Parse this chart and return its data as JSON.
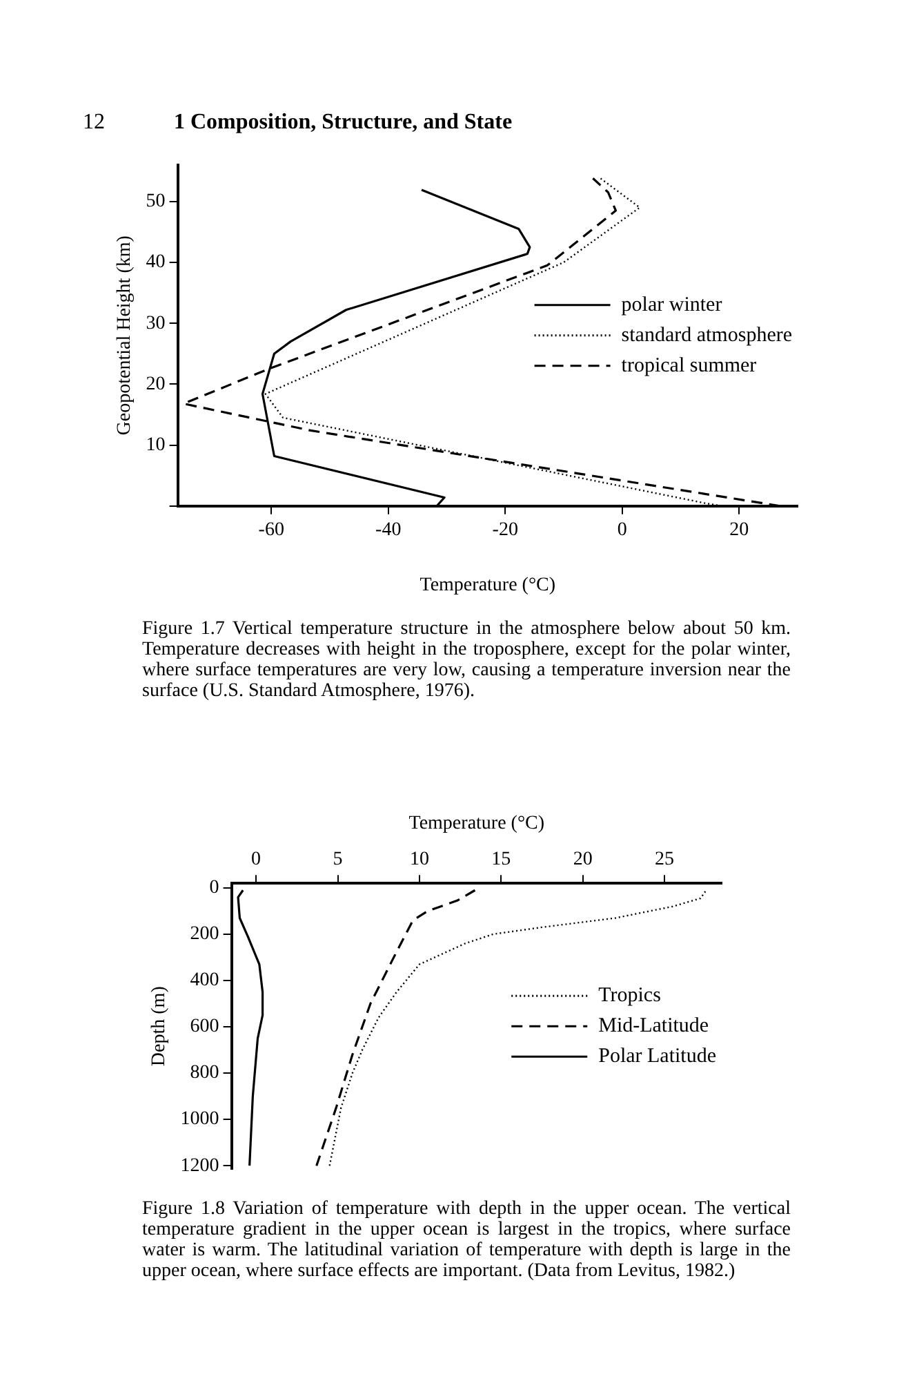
{
  "chart_data": [
    {
      "type": "line",
      "annotations": [
        "12",
        "1 Composition, Structure, and State",
        "Figure 1.7 Vertical temperature structure in the atmosphere below about 50 km. Temperature decreases with height in the troposphere, except for the polar winter, where surface temperatures are very low, causing a temperature inversion near the surface (U.S. Standard Atmosphere, 1976)."
      ],
      "xlabel": "Temperature (°C)",
      "ylabel": "Geopotential Height (km)",
      "xlim": [
        -76,
        30
      ],
      "ylim": [
        0,
        56
      ],
      "xticks": [
        -60,
        -40,
        -20,
        0,
        20
      ],
      "yticks": [
        {
          "value": 0,
          "label": null
        },
        10,
        20,
        30,
        40,
        50
      ],
      "grid": false,
      "legend": "right",
      "series": [
        {
          "name": "polar winter",
          "color": "#000000",
          "line_style": "solid",
          "x": [
            -31.7,
            -30.4,
            -59.5,
            -61.5,
            -59.5,
            -56.7,
            -47.2,
            -16.2,
            -15.8,
            -17.7,
            -34.3
          ],
          "values": [
            0,
            1.4,
            8.2,
            18.4,
            25,
            27,
            32.2,
            41.4,
            42.5,
            45.5,
            51.9
          ]
        },
        {
          "name": "standard atmosphere",
          "color": "#000000",
          "line_style": "dotted",
          "x": [
            17,
            14,
            -58,
            -61,
            -10,
            3,
            -4
          ],
          "values": [
            0,
            0.5,
            14.5,
            18.4,
            40,
            49,
            54
          ]
        },
        {
          "name": "tropical summer",
          "color": "#000000",
          "line_style": "dashed",
          "x": [
            27,
            -53.3,
            -75,
            -60.2,
            -12.8,
            -1.1,
            -2.4,
            -5
          ],
          "values": [
            0,
            12.4,
            16.8,
            22.6,
            39.5,
            48.5,
            51.5,
            53.8
          ]
        }
      ]
    },
    {
      "type": "line",
      "annotations": [
        "Figure 1.8 Variation of temperature with depth in the upper ocean. The vertical temperature gradient in the upper ocean is largest in the tropics, where surface water is warm. The latitudinal variation of temperature with depth is large in the upper ocean, where surface effects are important. (Data from Levitus, 1982.)"
      ],
      "xlabel": "Temperature (°C)",
      "ylabel": "Depth (m)",
      "xlim": [
        -1.5,
        28.5
      ],
      "ylim": [
        1215,
        -20
      ],
      "xticks": [
        0,
        5,
        10,
        15,
        20,
        25
      ],
      "yticks": [
        0,
        200,
        400,
        600,
        800,
        1000,
        1200
      ],
      "grid": false,
      "legend": "right",
      "series": [
        {
          "name": "Tropics",
          "color": "#000000",
          "line_style": "dotted",
          "x": [
            27.5,
            27.2,
            25.5,
            22,
            17.5,
            14.5,
            12.8,
            10,
            8.6,
            7.5,
            6.5,
            5.9,
            5.2,
            4.5
          ],
          "values": [
            15,
            45,
            80,
            130,
            170,
            200,
            240,
            330,
            450,
            560,
            700,
            800,
            950,
            1200
          ]
        },
        {
          "name": "Mid-Latitude",
          "color": "#000000",
          "line_style": "dashed",
          "x": [
            13.4,
            12.3,
            10.5,
            9.6,
            8.5,
            7,
            5.9,
            4.9,
            3.7
          ],
          "values": [
            10,
            55,
            100,
            140,
            290,
            500,
            720,
            950,
            1200
          ]
        },
        {
          "name": "Polar Latitude",
          "color": "#000000",
          "line_style": "solid",
          "x": [
            -0.8,
            -1.1,
            -1,
            -0.5,
            0.2,
            0.4,
            0.4,
            0.1,
            -0.2,
            -0.4
          ],
          "values": [
            10,
            40,
            130,
            210,
            330,
            450,
            550,
            650,
            900,
            1200
          ]
        }
      ]
    }
  ]
}
